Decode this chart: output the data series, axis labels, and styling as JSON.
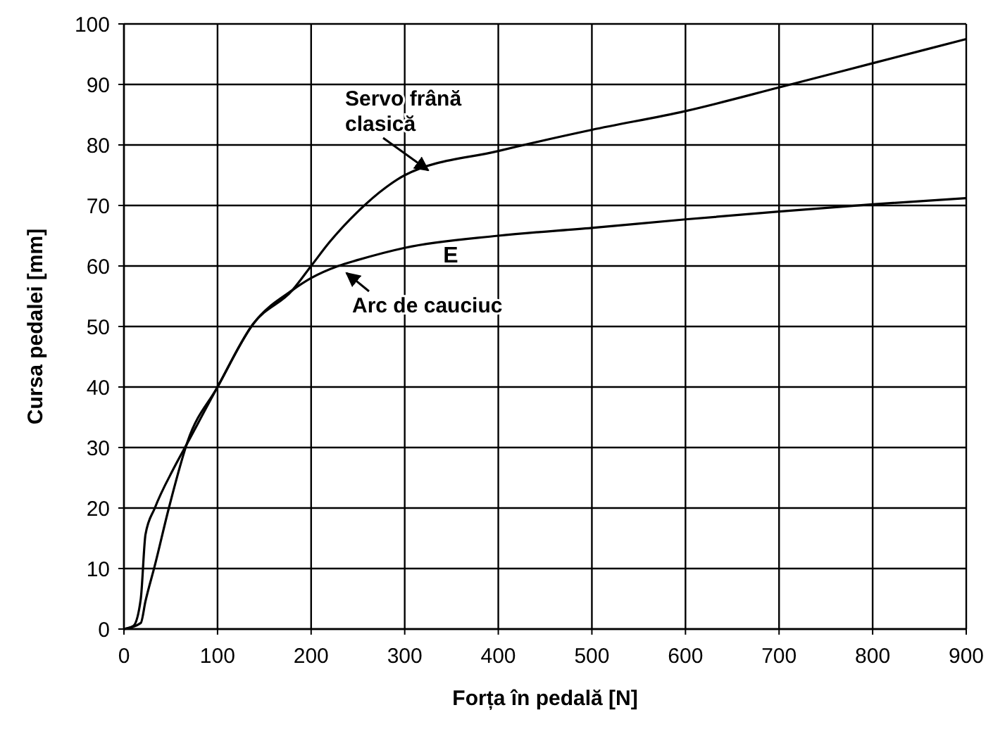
{
  "chart_data": {
    "type": "line",
    "xlabel": "Forța în pedală  [N]",
    "ylabel": "Cursa pedalei  [mm]",
    "xlim": [
      0,
      900
    ],
    "xticks": [
      0,
      100,
      200,
      300,
      400,
      500,
      600,
      700,
      800,
      900
    ],
    "ylim": [
      0,
      100
    ],
    "yticks": [
      0,
      10,
      20,
      30,
      40,
      50,
      60,
      70,
      80,
      90,
      100
    ],
    "grid": true,
    "marker": "none",
    "line_style": "solid",
    "series": [
      {
        "name": "Servo frână clasică",
        "color": "#000000",
        "x": [
          0,
          18,
          23,
          33,
          48,
          68,
          100,
          138,
          180,
          200,
          220,
          250,
          280,
          300,
          400,
          500,
          600,
          700,
          800,
          900
        ],
        "values": [
          0,
          1,
          4.6,
          10.5,
          20,
          31,
          40,
          50.4,
          56,
          60,
          64,
          69,
          73,
          75,
          79,
          82.5,
          85.6,
          89.5,
          93.5,
          97.5
        ]
      },
      {
        "name": "Arc de cauciuc",
        "color": "#000000",
        "x": [
          0,
          10,
          18,
          23,
          33,
          53,
          68,
          100,
          138,
          180,
          200,
          229,
          250,
          300,
          400,
          500,
          600,
          700,
          800,
          900
        ],
        "values": [
          0,
          0.5,
          5,
          15.6,
          20,
          26.5,
          30.8,
          40,
          50.4,
          56,
          58,
          60,
          61,
          63,
          65,
          66.3,
          67.7,
          69,
          70.2,
          71.2
        ]
      }
    ],
    "annotations": [
      "E"
    ]
  }
}
